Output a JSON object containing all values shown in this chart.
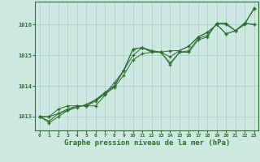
{
  "background_color": "#cce8e0",
  "grid_color": "#aacccc",
  "line_color": "#2d6e2d",
  "marker_color": "#2d6e2d",
  "title": "Graphe pression niveau de la mer (hPa)",
  "title_fontsize": 6.5,
  "ylabel_ticks": [
    1013,
    1014,
    1015,
    1016
  ],
  "xlim": [
    -0.5,
    23.5
  ],
  "ylim": [
    1012.55,
    1016.75
  ],
  "series": [
    [
      1013.0,
      1012.8,
      1013.0,
      1013.2,
      1013.35,
      1013.35,
      1013.35,
      1013.7,
      1014.0,
      1014.5,
      1015.2,
      1015.25,
      1015.15,
      1015.1,
      1014.7,
      1015.1,
      1015.1,
      1015.5,
      1015.6,
      1016.05,
      1016.05,
      1015.8,
      1016.0,
      1016.55
    ],
    [
      1013.0,
      1013.0,
      1013.25,
      1013.35,
      1013.35,
      1013.35,
      1013.5,
      1013.75,
      1014.1,
      1014.5,
      1015.0,
      1015.25,
      1015.1,
      1015.1,
      1015.15,
      1015.15,
      1015.3,
      1015.6,
      1015.75,
      1016.0,
      1015.7,
      1015.8,
      1016.05,
      1016.0
    ],
    [
      1013.0,
      1013.0,
      1013.1,
      1013.2,
      1013.3,
      1013.4,
      1013.55,
      1013.75,
      1013.95,
      1014.35,
      1014.85,
      1015.05,
      1015.1,
      1015.1,
      1014.95,
      1015.15,
      1015.3,
      1015.6,
      1015.75,
      1016.0,
      1015.7,
      1015.8,
      1016.05,
      1016.0
    ],
    [
      1013.0,
      1012.85,
      1013.1,
      1013.25,
      1013.35,
      1013.35,
      1013.55,
      1013.8,
      1014.0,
      1014.5,
      1015.2,
      1015.25,
      1015.15,
      1015.1,
      1014.75,
      1015.1,
      1015.15,
      1015.55,
      1015.65,
      1016.05,
      1016.0,
      1015.8,
      1016.05,
      1016.5
    ]
  ],
  "xtick_labels": [
    "0",
    "1",
    "2",
    "3",
    "4",
    "5",
    "6",
    "7",
    "8",
    "9",
    "10",
    "11",
    "12",
    "13",
    "14",
    "15",
    "16",
    "17",
    "18",
    "19",
    "20",
    "21",
    "22",
    "23"
  ]
}
